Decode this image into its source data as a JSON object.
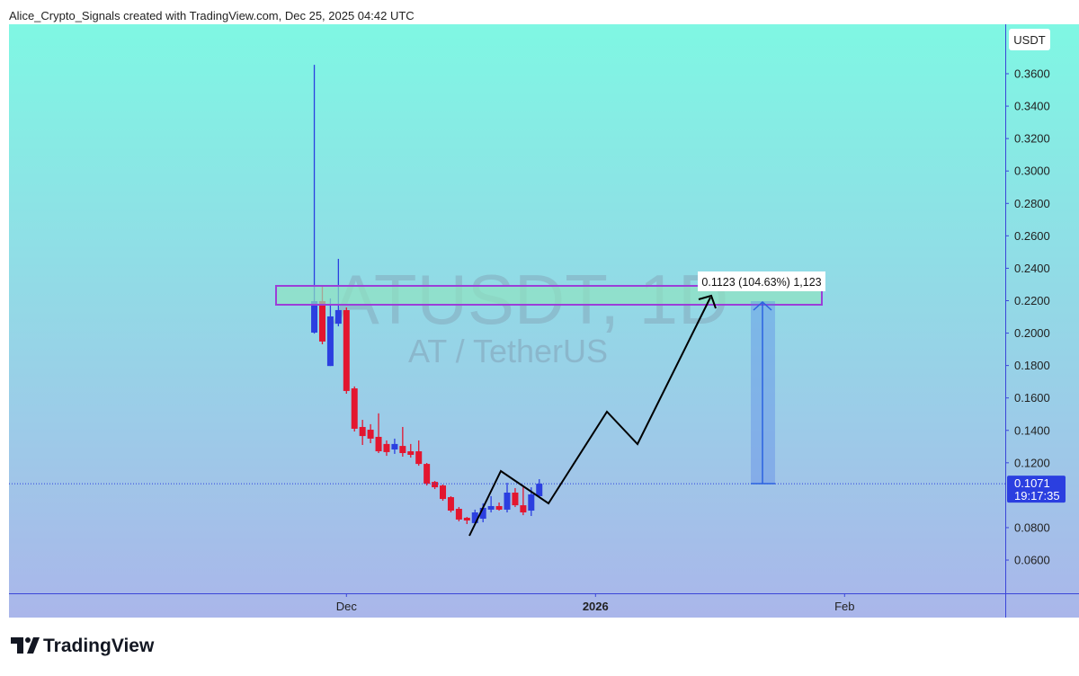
{
  "header": {
    "text": "Alice_Crypto_Signals created with TradingView.com, Dec 25, 2025 04:42 UTC"
  },
  "chart_data": {
    "type": "candlestick",
    "watermark_symbol": "ATUSDT, 1D",
    "watermark_name": "AT / TetherUS",
    "currency": "USDT",
    "open": [
      0.2003,
      0.2197,
      0.1797,
      0.2058,
      0.2142,
      0.1659,
      0.1421,
      0.1404,
      0.136,
      0.1316,
      0.1282,
      0.1304,
      0.1271,
      0.1271,
      0.1193,
      0.1082,
      0.106,
      0.0988,
      0.0916,
      0.0861,
      0.0828,
      0.0855,
      0.0911,
      0.0933,
      0.0911,
      0.1016,
      0.0938,
      0.0905,
      0.0994
    ],
    "high": [
      0.3655,
      0.2291,
      0.2214,
      0.2458,
      0.2158,
      0.1671,
      0.1465,
      0.1438,
      0.1505,
      0.1338,
      0.1349,
      0.1421,
      0.1316,
      0.1338,
      0.1199,
      0.1088,
      0.1066,
      0.0994,
      0.0927,
      0.0866,
      0.0911,
      0.095,
      0.0994,
      0.0955,
      0.1077,
      0.1044,
      0.1049,
      0.1049,
      0.1099
    ],
    "low": [
      0.1997,
      0.1931,
      0.1797,
      0.2042,
      0.1626,
      0.1393,
      0.131,
      0.1321,
      0.126,
      0.1243,
      0.1255,
      0.1238,
      0.1232,
      0.1182,
      0.106,
      0.1038,
      0.0966,
      0.0894,
      0.0839,
      0.0822,
      0.0822,
      0.0833,
      0.0894,
      0.0905,
      0.0894,
      0.0927,
      0.0877,
      0.0872,
      0.0994
    ],
    "close": [
      0.2197,
      0.1948,
      0.2103,
      0.2142,
      0.1643,
      0.141,
      0.1365,
      0.1349,
      0.1271,
      0.1266,
      0.1316,
      0.126,
      0.1249,
      0.1193,
      0.1071,
      0.1049,
      0.0977,
      0.0905,
      0.085,
      0.0844,
      0.0894,
      0.0922,
      0.0933,
      0.0911,
      0.1016,
      0.0938,
      0.0894,
      0.1005,
      0.1071
    ],
    "up_color": "#2b3fe0",
    "down_color": "#e3162f",
    "xlim": [
      -38,
      86
    ],
    "xticks": [
      {
        "value": 4,
        "label": "Dec"
      },
      {
        "value": 35,
        "label": "2026"
      },
      {
        "value": 66,
        "label": "Feb"
      }
    ],
    "ylim": [
      0.0395,
      0.3905
    ],
    "yticks": [
      {
        "value": 0.06,
        "label": "0.0600"
      },
      {
        "value": 0.08,
        "label": "0.0800"
      },
      {
        "value": 0.12,
        "label": "0.1200"
      },
      {
        "value": 0.14,
        "label": "0.1400"
      },
      {
        "value": 0.16,
        "label": "0.1600"
      },
      {
        "value": 0.18,
        "label": "0.1800"
      },
      {
        "value": 0.2,
        "label": "0.2000"
      },
      {
        "value": 0.22,
        "label": "0.2200"
      },
      {
        "value": 0.24,
        "label": "0.2400"
      },
      {
        "value": 0.26,
        "label": "0.2600"
      },
      {
        "value": 0.28,
        "label": "0.2800"
      },
      {
        "value": 0.3,
        "label": "0.3000"
      },
      {
        "value": 0.32,
        "label": "0.3200"
      },
      {
        "value": 0.34,
        "label": "0.3400"
      },
      {
        "value": 0.36,
        "label": "0.3600"
      }
    ],
    "last_price": 0.1071,
    "countdown": "19:17:35",
    "measure_label": "0.1123 (104.63%) 1,123"
  },
  "footer": {
    "logo": "TradingView"
  }
}
